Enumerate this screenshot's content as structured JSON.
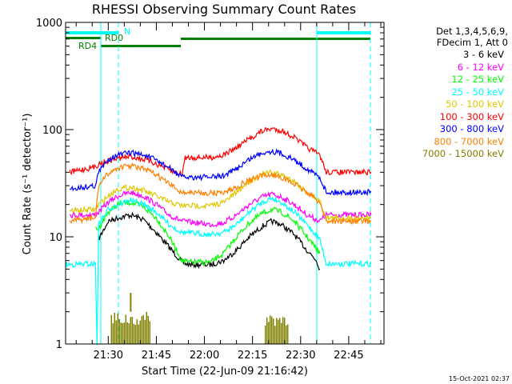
{
  "chart_data": {
    "type": "line",
    "title": "RHESSI Observing Summary Count Rates",
    "xlabel": "Start Time (22-Jun-09 21:16:42)",
    "ylabel": "Count Rate (s⁻¹ detector⁻¹)",
    "yscale": "log",
    "ylim": [
      1,
      1000
    ],
    "xlim": [
      "21:16:42",
      "22:56:00"
    ],
    "x_ticks": [
      "21:30",
      "21:45",
      "22:00",
      "22:15",
      "22:30",
      "22:45"
    ],
    "y_ticks": [
      "1",
      "10",
      "100",
      "1000"
    ],
    "grid": false,
    "legend_position": "right",
    "header": [
      "Det 1,3,4,5,6,9,",
      "FDecim 1, Att 0"
    ],
    "series": [
      {
        "name": "3 - 6 keV",
        "color": "#000000",
        "points": [
          [
            "21:27",
            9.5
          ],
          [
            "21:30",
            14
          ],
          [
            "21:33",
            15
          ],
          [
            "21:37",
            16
          ],
          [
            "21:41",
            14.5
          ],
          [
            "21:45",
            11
          ],
          [
            "21:49",
            8
          ],
          [
            "21:53",
            5.8
          ],
          [
            "21:55",
            5.5
          ],
          [
            "22:02",
            5.5
          ],
          [
            "22:06",
            6
          ],
          [
            "22:10",
            7.5
          ],
          [
            "22:14",
            10
          ],
          [
            "22:18",
            12.5
          ],
          [
            "22:21",
            14
          ],
          [
            "22:24",
            13
          ],
          [
            "22:28",
            10.5
          ],
          [
            "22:32",
            7.5
          ],
          [
            "22:35",
            6
          ],
          [
            "22:36",
            5
          ]
        ]
      },
      {
        "name": "6 - 12 keV",
        "color": "#ff00ff",
        "points": [
          [
            "21:18",
            16
          ],
          [
            "21:26",
            16
          ],
          [
            "21:27",
            17
          ],
          [
            "21:30",
            21
          ],
          [
            "21:33",
            24
          ],
          [
            "21:37",
            26
          ],
          [
            "21:41",
            24
          ],
          [
            "21:45",
            20
          ],
          [
            "21:49",
            16
          ],
          [
            "21:53",
            14
          ],
          [
            "22:02",
            13
          ],
          [
            "22:06",
            13.5
          ],
          [
            "22:10",
            16
          ],
          [
            "22:14",
            20
          ],
          [
            "22:18",
            23.5
          ],
          [
            "22:21",
            25
          ],
          [
            "22:24",
            23.5
          ],
          [
            "22:28",
            20
          ],
          [
            "22:32",
            16
          ],
          [
            "22:36",
            14
          ],
          [
            "22:38",
            16
          ],
          [
            "22:52",
            16
          ]
        ]
      },
      {
        "name": "12 - 25 keV",
        "color": "#00ff00",
        "points": [
          [
            "21:26",
            12
          ],
          [
            "21:27",
            12
          ],
          [
            "21:30",
            17
          ],
          [
            "21:33",
            20
          ],
          [
            "21:37",
            21
          ],
          [
            "21:41",
            19
          ],
          [
            "21:45",
            15
          ],
          [
            "21:49",
            10
          ],
          [
            "21:53",
            6
          ],
          [
            "21:55",
            5.8
          ],
          [
            "22:02",
            5.8
          ],
          [
            "22:06",
            7
          ],
          [
            "22:10",
            10
          ],
          [
            "22:14",
            13.5
          ],
          [
            "22:18",
            16.5
          ],
          [
            "22:21",
            18
          ],
          [
            "22:24",
            17
          ],
          [
            "22:28",
            14
          ],
          [
            "22:32",
            10
          ],
          [
            "22:36",
            7
          ]
        ]
      },
      {
        "name": "25 - 50 keV",
        "color": "#00ffff",
        "points": [
          [
            "21:16:42",
            5.5
          ],
          [
            "21:26",
            5.6
          ],
          [
            "21:26:30",
            1
          ],
          [
            "21:27",
            13
          ],
          [
            "21:30",
            18
          ],
          [
            "21:33",
            20
          ],
          [
            "21:37",
            22
          ],
          [
            "21:41",
            20
          ],
          [
            "21:45",
            17
          ],
          [
            "21:49",
            13
          ],
          [
            "21:53",
            11
          ],
          [
            "22:02",
            10.5
          ],
          [
            "22:06",
            11
          ],
          [
            "22:10",
            13
          ],
          [
            "22:14",
            17
          ],
          [
            "22:18",
            21
          ],
          [
            "22:21",
            23
          ],
          [
            "22:24",
            21
          ],
          [
            "22:28",
            17
          ],
          [
            "22:32",
            13
          ],
          [
            "22:36",
            9.5
          ],
          [
            "22:38",
            5.6
          ],
          [
            "22:52",
            5.6
          ]
        ]
      },
      {
        "name": "50 - 100 keV",
        "color": "#e0c800",
        "points": [
          [
            "21:18",
            17.5
          ],
          [
            "21:26",
            18
          ],
          [
            "21:27",
            20
          ],
          [
            "21:30",
            24
          ],
          [
            "21:33",
            28
          ],
          [
            "21:37",
            29
          ],
          [
            "21:41",
            27
          ],
          [
            "21:45",
            24
          ],
          [
            "21:49",
            21
          ],
          [
            "21:53",
            19.5
          ],
          [
            "22:02",
            19.5
          ],
          [
            "22:06",
            21
          ],
          [
            "22:10",
            26
          ],
          [
            "22:14",
            33
          ],
          [
            "22:18",
            38
          ],
          [
            "22:21",
            40
          ],
          [
            "22:24",
            38
          ],
          [
            "22:28",
            33
          ],
          [
            "22:32",
            26
          ],
          [
            "22:36",
            21.5
          ],
          [
            "22:38",
            15
          ],
          [
            "22:52",
            15
          ]
        ]
      },
      {
        "name": "100 - 300 keV",
        "color": "#ff0000",
        "points": [
          [
            "21:18",
            40
          ],
          [
            "21:26",
            45
          ],
          [
            "21:27",
            48
          ],
          [
            "21:30",
            51
          ],
          [
            "21:33",
            54
          ],
          [
            "21:37",
            56
          ],
          [
            "21:41",
            53
          ],
          [
            "21:45",
            48
          ],
          [
            "21:49",
            42
          ],
          [
            "21:53",
            38
          ],
          [
            "21:54",
            55
          ],
          [
            "22:02",
            55
          ],
          [
            "22:06",
            58
          ],
          [
            "22:10",
            68
          ],
          [
            "22:14",
            82
          ],
          [
            "22:18",
            97
          ],
          [
            "22:21",
            102
          ],
          [
            "22:24",
            98
          ],
          [
            "22:28",
            85
          ],
          [
            "22:32",
            68
          ],
          [
            "22:36",
            58
          ],
          [
            "22:38",
            40
          ],
          [
            "22:52",
            40
          ]
        ]
      },
      {
        "name": "300 - 800 keV",
        "color": "#0000ff",
        "points": [
          [
            "21:18",
            28
          ],
          [
            "21:26",
            30
          ],
          [
            "21:27",
            40
          ],
          [
            "21:30",
            53
          ],
          [
            "21:33",
            58
          ],
          [
            "21:37",
            61
          ],
          [
            "21:41",
            58
          ],
          [
            "21:45",
            52
          ],
          [
            "21:49",
            44
          ],
          [
            "21:53",
            36
          ],
          [
            "22:02",
            36
          ],
          [
            "22:06",
            37
          ],
          [
            "22:10",
            43
          ],
          [
            "22:14",
            53
          ],
          [
            "22:18",
            61
          ],
          [
            "22:21",
            63
          ],
          [
            "22:24",
            60
          ],
          [
            "22:28",
            52
          ],
          [
            "22:32",
            43
          ],
          [
            "22:36",
            36
          ],
          [
            "22:38",
            26
          ],
          [
            "22:52",
            26
          ]
        ]
      },
      {
        "name": "800 - 7000 keV",
        "color": "#ff8000",
        "points": [
          [
            "21:18",
            14
          ],
          [
            "21:26",
            15
          ],
          [
            "21:27",
            30
          ],
          [
            "21:30",
            39
          ],
          [
            "21:33",
            44
          ],
          [
            "21:37",
            46
          ],
          [
            "21:41",
            43
          ],
          [
            "21:45",
            38
          ],
          [
            "21:49",
            31
          ],
          [
            "21:53",
            26
          ],
          [
            "22:02",
            25.5
          ],
          [
            "22:06",
            26
          ],
          [
            "22:10",
            29
          ],
          [
            "22:14",
            34
          ],
          [
            "22:18",
            37
          ],
          [
            "22:21",
            38
          ],
          [
            "22:24",
            36
          ],
          [
            "22:28",
            31
          ],
          [
            "22:32",
            26
          ],
          [
            "22:36",
            21
          ],
          [
            "22:38",
            14
          ],
          [
            "22:52",
            14
          ]
        ]
      },
      {
        "name": "7000 - 15000 keV",
        "color": "#808000",
        "segments": [
          {
            "from": "21:31",
            "to": "21:43",
            "low": 1,
            "high": 2
          },
          {
            "from": "22:19",
            "to": "22:26",
            "low": 1,
            "high": 2
          }
        ],
        "spike": {
          "x": "21:37",
          "y": 3
        }
      }
    ]
  },
  "labels": {
    "flag_n": "N",
    "flag_rd0": "RD0",
    "flag_rd4": "RD4",
    "footer_stamp": "15-Oct-2021 02:37"
  },
  "colors": {
    "cyan": "#00ffff",
    "green": "#008000",
    "olive": "#808000"
  }
}
